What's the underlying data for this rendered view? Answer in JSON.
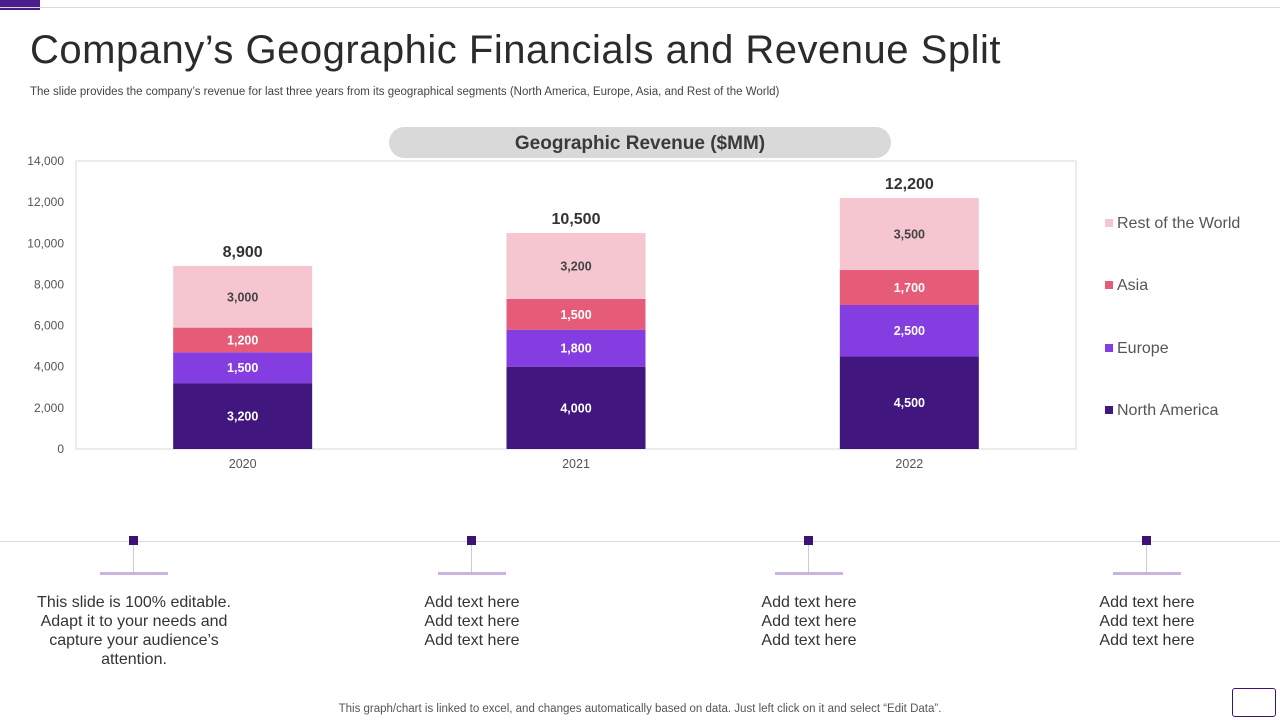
{
  "page": {
    "title": "Company’s Geographic Financials and Revenue Split",
    "subtitle": "The slide provides the company’s revenue for last three years from its geographical segments (North America, Europe, Asia, and Rest of the World)",
    "footer_note": "This graph/chart is linked to excel,  and changes automatically based on data. Just left click on it and select “Edit Data”."
  },
  "cards": [
    {
      "text": "This slide is 100% editable. Adapt it to your needs and capture your audience’s attention."
    },
    {
      "text": "Add text here Add text here Add text here"
    },
    {
      "text": "Add text here Add text here Add text here"
    },
    {
      "text": "Add text here Add text here Add text here"
    }
  ],
  "chart_data": {
    "type": "bar",
    "stacked": true,
    "title": "Geographic Revenue ($MM)",
    "xlabel": "",
    "ylabel": "",
    "categories": [
      "2020",
      "2021",
      "2022"
    ],
    "series": [
      {
        "name": "North America",
        "color": "#41177f",
        "values": [
          3200,
          4000,
          4500
        ]
      },
      {
        "name": "Europe",
        "color": "#833de0",
        "values": [
          1500,
          1800,
          2500
        ]
      },
      {
        "name": "Asia",
        "color": "#e55b78",
        "values": [
          1200,
          1500,
          1700
        ]
      },
      {
        "name": "Rest of the World",
        "color": "#f5c6d0",
        "values": [
          3000,
          3200,
          3500
        ]
      }
    ],
    "totals": [
      "8,900",
      "10,500",
      "12,200"
    ],
    "ylim": [
      0,
      14000
    ],
    "yticks": [
      "0",
      "2,000",
      "4,000",
      "6,000",
      "8,000",
      "10,000",
      "12,000",
      "14,000"
    ],
    "legend_position": "right",
    "legend_order": [
      "Rest of the World",
      "Asia",
      "Europe",
      "North America"
    ]
  }
}
